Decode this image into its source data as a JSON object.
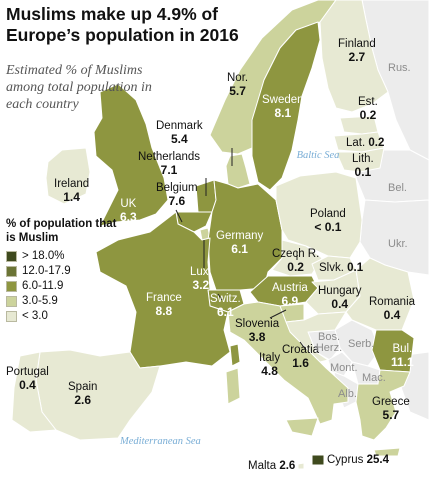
{
  "title": "Muslims make up 4.9% of Europe’s population in 2016",
  "subtitle": "Estimated % of Muslims among total population in each country",
  "legend": {
    "title": "% of population that is Muslim",
    "items": [
      {
        "label": "> 18.0%",
        "color": "#3f4a1e"
      },
      {
        "label": "12.0-17.9",
        "color": "#6b7435"
      },
      {
        "label": "6.0-11.9",
        "color": "#8e9640"
      },
      {
        "label": "3.0-5.9",
        "color": "#ccd39c"
      },
      {
        "label": "< 3.0",
        "color": "#e7e9d3"
      }
    ]
  },
  "colors": {
    "neighbor": "#ececec",
    "water": "#ffffff",
    "border": "#ffffff"
  },
  "countries": [
    {
      "name": "Finland",
      "value": "2.7"
    },
    {
      "name": "Nor.",
      "value": "5.7"
    },
    {
      "name": "Sweden",
      "value": "8.1"
    },
    {
      "name": "Est.",
      "value": "0.2"
    },
    {
      "name": "Lat.",
      "value": "0.2"
    },
    {
      "name": "Lith.",
      "value": "0.1"
    },
    {
      "name": "Denmark",
      "value": "5.4"
    },
    {
      "name": "Netherlands",
      "value": "7.1"
    },
    {
      "name": "Ireland",
      "value": "1.4"
    },
    {
      "name": "UK",
      "value": "6.3"
    },
    {
      "name": "Belgium",
      "value": "7.6"
    },
    {
      "name": "Germany",
      "value": "6.1"
    },
    {
      "name": "Poland",
      "value": "< 0.1"
    },
    {
      "name": "Czech R.",
      "value": "0.2"
    },
    {
      "name": "Slvk.",
      "value": "0.1"
    },
    {
      "name": "Lux.",
      "value": "3.2"
    },
    {
      "name": "Switz.",
      "value": "6.1"
    },
    {
      "name": "Austria",
      "value": "6.9"
    },
    {
      "name": "Hungary",
      "value": "0.4"
    },
    {
      "name": "Romania",
      "value": "0.4"
    },
    {
      "name": "France",
      "value": "8.8"
    },
    {
      "name": "Slovenia",
      "value": "3.8"
    },
    {
      "name": "Croatia",
      "value": "1.6"
    },
    {
      "name": "Bul.",
      "value": "11.1"
    },
    {
      "name": "Portugal",
      "value": "0.4"
    },
    {
      "name": "Spain",
      "value": "2.6"
    },
    {
      "name": "Italy",
      "value": "4.8"
    },
    {
      "name": "Greece",
      "value": "5.7"
    },
    {
      "name": "Malta",
      "value": "2.6"
    },
    {
      "name": "Cyprus",
      "value": "25.4"
    }
  ],
  "non_eu_labels": [
    "Rus.",
    "Bel.",
    "Ukr.",
    "Serb.",
    "Bos. Herz.",
    "Mont.",
    "Mac.",
    "Alb."
  ],
  "seas": [
    "Baltic Sea",
    "Mediterranean Sea"
  ]
}
